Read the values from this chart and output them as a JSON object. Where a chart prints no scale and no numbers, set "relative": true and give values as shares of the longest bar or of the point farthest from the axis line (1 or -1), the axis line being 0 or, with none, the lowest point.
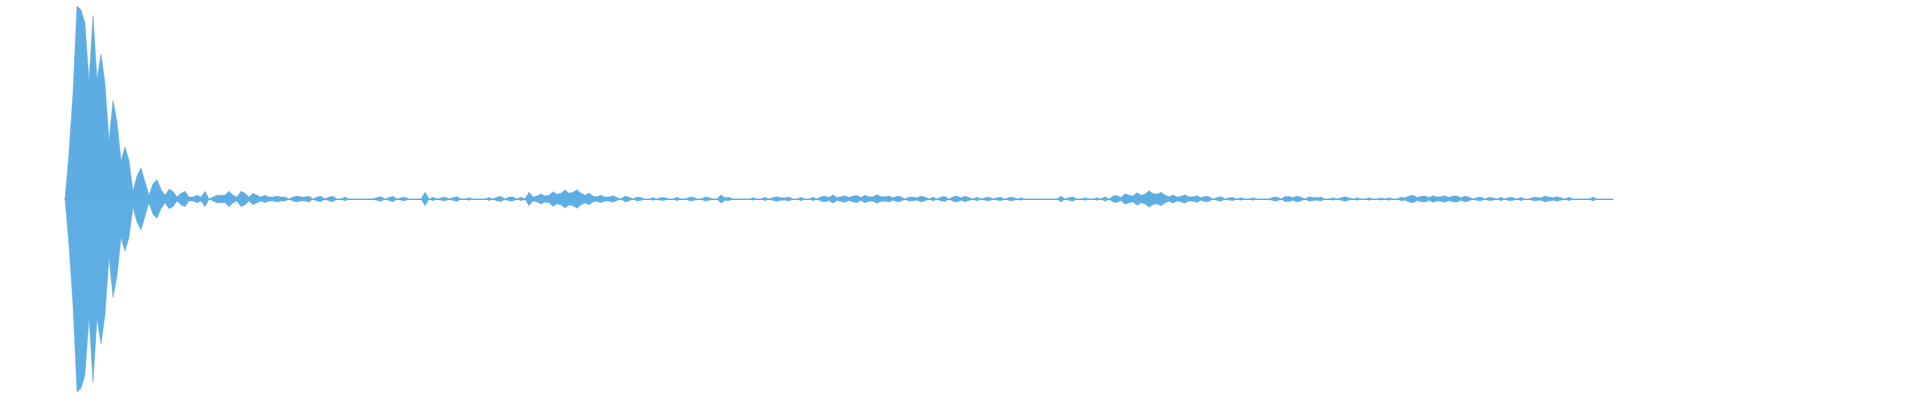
{
  "chart_data": {
    "type": "area",
    "relative": true,
    "categories": [
      null,
      null,
      null,
      null,
      null,
      null,
      null,
      null,
      null,
      null,
      null,
      null,
      null,
      null,
      null,
      null,
      null,
      null,
      null,
      null,
      null,
      null,
      null,
      null,
      null,
      null,
      null,
      null,
      null,
      null,
      null,
      null,
      null,
      null,
      null,
      null,
      null,
      null,
      null,
      null,
      null,
      null,
      null,
      null,
      null,
      null,
      null,
      null,
      null,
      null,
      null,
      null,
      null,
      null,
      null,
      null,
      null,
      null,
      null,
      null,
      null,
      null,
      null,
      null,
      null,
      null,
      null,
      null,
      null,
      null,
      null,
      null,
      null,
      null,
      null,
      null,
      null,
      null,
      null,
      null,
      null,
      null,
      null,
      null,
      null,
      null,
      null,
      null,
      null,
      null,
      null,
      null,
      null,
      null,
      null,
      null,
      null,
      null,
      null,
      null,
      null,
      null,
      null,
      null,
      null,
      null,
      null,
      null,
      null,
      null,
      null,
      null,
      null,
      null,
      null,
      null,
      null,
      null,
      null,
      null,
      null,
      null,
      null,
      null,
      null,
      null,
      null,
      null,
      null,
      null,
      null,
      null,
      null,
      null,
      null,
      null,
      null,
      null,
      null,
      null,
      null,
      null,
      null,
      null,
      null,
      null,
      null,
      null,
      null,
      null,
      null,
      null,
      null,
      null,
      null,
      null,
      null,
      null,
      null,
      null,
      null,
      null,
      null,
      null,
      null,
      null,
      null,
      null,
      null,
      null,
      null,
      null,
      null,
      null,
      null,
      null,
      null,
      null,
      null,
      null,
      null,
      null,
      null,
      null,
      null,
      null,
      null,
      null,
      null,
      null,
      null,
      null,
      null,
      null,
      null,
      null,
      null,
      null,
      null,
      null,
      null,
      null,
      null,
      null,
      null,
      null,
      null,
      null,
      null,
      null,
      null,
      null,
      null,
      null,
      null,
      null,
      null,
      null,
      null,
      null,
      null,
      null,
      null,
      null,
      null,
      null,
      null,
      null,
      null,
      null,
      null,
      null,
      null,
      null,
      null,
      null,
      null,
      null,
      null,
      null,
      null,
      null,
      null,
      null,
      null,
      null,
      null,
      null,
      null,
      null,
      null,
      null,
      null,
      null,
      null,
      null,
      null,
      null,
      null,
      null,
      null,
      null,
      null,
      null,
      null,
      null,
      null,
      null,
      null,
      null,
      null,
      null,
      null,
      null,
      null,
      null,
      null,
      null,
      null,
      null,
      null,
      null,
      null,
      null,
      null,
      null,
      null,
      null,
      null,
      null,
      null,
      null,
      null,
      null,
      null,
      null,
      null,
      null,
      null,
      null,
      null,
      null,
      null,
      null,
      null,
      null,
      null,
      null,
      null,
      null,
      null,
      null,
      null,
      null,
      null,
      null,
      null,
      null,
      null,
      null,
      null,
      null,
      null,
      null,
      null,
      null,
      null,
      null,
      null,
      null,
      null,
      null,
      null,
      null,
      null,
      null,
      null,
      null,
      null,
      null,
      null,
      null,
      null,
      null,
      null,
      null,
      null,
      null,
      null,
      null,
      null,
      null,
      null,
      null,
      null,
      null,
      null,
      null,
      null,
      null,
      null,
      null,
      null,
      null,
      null,
      null,
      null,
      null,
      null,
      null,
      null,
      null,
      null,
      null,
      null,
      null,
      null,
      null,
      null,
      null,
      null,
      null,
      null,
      null,
      null,
      null,
      null,
      null
    ],
    "series": [
      {
        "color": "#5dade2",
        "values": [
          0,
          0.24,
          0.55,
          1,
          0.98,
          0.91,
          0.61,
          0.95,
          0.62,
          0.75,
          0.6,
          0.3,
          0.51,
          0.4,
          0.2,
          0.27,
          0.2,
          0.04,
          0.12,
          0.16,
          0.09,
          0.02,
          0.08,
          0.1,
          0.05,
          0.02,
          0.05,
          0.04,
          0.01,
          0.03,
          0.04,
          0.01,
          0.01,
          0.02,
          0.01,
          0.04,
          0,
          0.01,
          0.02,
          0.02,
          0.02,
          0.04,
          0.02,
          0.01,
          0.04,
          0.03,
          0.01,
          0.03,
          0.02,
          0.01,
          0.02,
          0.01,
          0.01,
          0.015,
          0.01,
          0.01,
          0,
          0.01,
          0.015,
          0.01,
          0.01,
          0.015,
          0,
          0.01,
          0.014,
          0,
          0.01,
          0.014,
          0,
          0,
          0.01,
          0,
          0,
          0,
          0,
          0,
          0,
          0,
          0.008,
          0.012,
          0,
          0.008,
          0.014,
          0,
          0.006,
          0.009,
          0,
          0,
          0,
          0,
          0.035,
          0,
          0.009,
          0,
          0.006,
          0.01,
          0,
          0.008,
          0.012,
          0,
          0,
          0.007,
          0,
          0,
          0,
          0,
          0.008,
          0,
          0.01,
          0.013,
          0,
          0.01,
          0.01,
          0,
          0.009,
          0,
          0.035,
          0.01,
          0.015,
          0.026,
          0.015,
          0.02,
          0.038,
          0.025,
          0.03,
          0.047,
          0.03,
          0.035,
          0.048,
          0.03,
          0.02,
          0.03,
          0.015,
          0.012,
          0.02,
          0.01,
          0.01,
          0.017,
          0.008,
          0,
          0.015,
          0.01,
          0,
          0.01,
          0.008,
          0,
          0,
          0.007,
          0,
          0.008,
          0.006,
          0,
          0,
          0.009,
          0,
          0,
          0.008,
          0.01,
          0,
          0,
          0.01,
          0.008,
          0,
          0,
          0.022,
          0.006,
          0.009,
          0,
          0,
          0,
          0,
          0,
          0.007,
          0,
          0,
          0.009,
          0,
          0.008,
          0.012,
          0.006,
          0.006,
          0.01,
          0,
          0,
          0.009,
          0,
          0,
          0.009,
          0,
          0.012,
          0.014,
          0.008,
          0.022,
          0.008,
          0.012,
          0.017,
          0.008,
          0.015,
          0.018,
          0.008,
          0.019,
          0.012,
          0.012,
          0.022,
          0.012,
          0.012,
          0.015,
          0.006,
          0.014,
          0.012,
          0,
          0.011,
          0.009,
          0.006,
          0.015,
          0.01,
          0,
          0.01,
          0,
          0.01,
          0.013,
          0,
          0.012,
          0.015,
          0.006,
          0.014,
          0.008,
          0,
          0.01,
          0,
          0.006,
          0.01,
          0,
          0.006,
          0.009,
          0,
          0.008,
          0.009,
          0,
          0.007,
          0,
          0,
          0,
          0,
          0,
          0,
          0,
          0,
          0,
          0.015,
          0,
          0.008,
          0.01,
          0,
          0,
          0.007,
          0,
          0,
          0.007,
          0,
          0.012,
          0,
          0.015,
          0.018,
          0.008,
          0.027,
          0.02,
          0.015,
          0.033,
          0.02,
          0.025,
          0.043,
          0.028,
          0.025,
          0.035,
          0.02,
          0.012,
          0.021,
          0.01,
          0.014,
          0.022,
          0.01,
          0.012,
          0.017,
          0.006,
          0.014,
          0.012,
          0,
          0.008,
          0.012,
          0,
          0.006,
          0.008,
          0,
          0.007,
          0,
          0,
          0.007,
          0,
          0,
          0,
          0,
          0.009,
          0.011,
          0,
          0.013,
          0.013,
          0.006,
          0.015,
          0.01,
          0,
          0.012,
          0.008,
          0.006,
          0.01,
          0,
          0,
          0.007,
          0,
          0.006,
          0.012,
          0.006,
          0,
          0.007,
          0,
          0,
          0.007,
          0,
          0,
          0.006,
          0,
          0.007,
          0,
          0,
          0.009,
          0.006,
          0.015,
          0.02,
          0.008,
          0.014,
          0.015,
          0.008,
          0.017,
          0.01,
          0.012,
          0.017,
          0.008,
          0.015,
          0.015,
          0.006,
          0.015,
          0.01,
          0,
          0.008,
          0.009,
          0,
          0.009,
          0.006,
          0,
          0.009,
          0,
          0.009,
          0.007,
          0,
          0.009,
          0,
          0,
          0.009,
          0.008,
          0.006,
          0.015,
          0.01,
          0.006,
          0.012,
          0.006,
          0,
          0.009,
          0,
          0,
          0,
          0,
          0,
          0.01,
          0,
          0,
          0,
          0,
          0
        ]
      },
      {
        "color": "#5eaee3",
        "values": [
          0,
          -0.24,
          -0.55,
          -1,
          -0.98,
          -0.91,
          -0.61,
          -0.95,
          -0.62,
          -0.75,
          -0.6,
          -0.3,
          -0.51,
          -0.4,
          -0.2,
          -0.27,
          -0.2,
          -0.04,
          -0.12,
          -0.16,
          -0.09,
          -0.02,
          -0.08,
          -0.1,
          -0.05,
          -0.02,
          -0.05,
          -0.04,
          -0.01,
          -0.03,
          -0.04,
          -0.01,
          -0.01,
          -0.02,
          -0.01,
          -0.04,
          0,
          -0.01,
          -0.02,
          -0.02,
          -0.02,
          -0.04,
          -0.02,
          -0.01,
          -0.04,
          -0.03,
          -0.01,
          -0.03,
          -0.02,
          -0.01,
          -0.02,
          -0.01,
          -0.01,
          -0.015,
          -0.01,
          -0.01,
          0,
          -0.01,
          -0.015,
          -0.01,
          -0.01,
          -0.015,
          0,
          -0.01,
          -0.014,
          0,
          -0.01,
          -0.014,
          0,
          0,
          -0.01,
          0,
          0,
          0,
          0,
          0,
          0,
          0,
          -0.008,
          -0.012,
          0,
          -0.008,
          -0.014,
          0,
          -0.006,
          -0.009,
          0,
          0,
          0,
          0,
          -0.035,
          0,
          -0.009,
          0,
          -0.006,
          -0.01,
          0,
          -0.008,
          -0.012,
          0,
          0,
          -0.007,
          0,
          0,
          0,
          0,
          -0.008,
          0,
          -0.01,
          -0.013,
          0,
          -0.01,
          -0.01,
          0,
          -0.009,
          0,
          -0.035,
          -0.01,
          -0.015,
          -0.026,
          -0.015,
          -0.02,
          -0.038,
          -0.025,
          -0.03,
          -0.047,
          -0.03,
          -0.035,
          -0.048,
          -0.03,
          -0.02,
          -0.03,
          -0.015,
          -0.012,
          -0.02,
          -0.01,
          -0.01,
          -0.017,
          -0.008,
          0,
          -0.015,
          -0.01,
          0,
          -0.01,
          -0.008,
          0,
          0,
          -0.007,
          0,
          -0.008,
          -0.006,
          0,
          0,
          -0.009,
          0,
          0,
          -0.008,
          -0.01,
          0,
          0,
          -0.01,
          -0.008,
          0,
          0,
          -0.022,
          -0.006,
          -0.009,
          0,
          0,
          0,
          0,
          0,
          -0.007,
          0,
          0,
          -0.009,
          0,
          -0.008,
          -0.012,
          -0.006,
          -0.006,
          -0.01,
          0,
          0,
          -0.009,
          0,
          0,
          -0.009,
          0,
          -0.012,
          -0.014,
          -0.008,
          -0.022,
          -0.008,
          -0.012,
          -0.017,
          -0.008,
          -0.015,
          -0.018,
          -0.008,
          -0.019,
          -0.012,
          -0.012,
          -0.022,
          -0.012,
          -0.012,
          -0.015,
          -0.006,
          -0.014,
          -0.012,
          0,
          -0.011,
          -0.009,
          -0.006,
          -0.015,
          -0.01,
          0,
          -0.01,
          0,
          -0.01,
          -0.013,
          0,
          -0.012,
          -0.015,
          -0.006,
          -0.014,
          -0.008,
          0,
          -0.01,
          0,
          -0.006,
          -0.01,
          0,
          -0.006,
          -0.009,
          0,
          -0.008,
          -0.009,
          0,
          -0.007,
          0,
          0,
          0,
          0,
          0,
          0,
          0,
          0,
          0,
          -0.015,
          0,
          -0.008,
          -0.01,
          0,
          0,
          -0.007,
          0,
          0,
          -0.007,
          0,
          -0.012,
          0,
          -0.015,
          -0.018,
          -0.008,
          -0.027,
          -0.02,
          -0.015,
          -0.033,
          -0.02,
          -0.025,
          -0.043,
          -0.028,
          -0.025,
          -0.035,
          -0.02,
          -0.012,
          -0.021,
          -0.01,
          -0.014,
          -0.022,
          -0.01,
          -0.012,
          -0.017,
          -0.006,
          -0.014,
          -0.012,
          0,
          -0.008,
          -0.012,
          0,
          -0.006,
          -0.008,
          0,
          -0.007,
          0,
          0,
          -0.007,
          0,
          0,
          0,
          0,
          -0.009,
          -0.011,
          0,
          -0.013,
          -0.013,
          -0.006,
          -0.015,
          -0.01,
          0,
          -0.012,
          -0.008,
          -0.006,
          -0.01,
          0,
          0,
          -0.007,
          0,
          -0.006,
          -0.012,
          -0.006,
          0,
          -0.007,
          0,
          0,
          -0.007,
          0,
          0,
          -0.006,
          0,
          -0.007,
          0,
          0,
          -0.009,
          -0.006,
          -0.015,
          -0.02,
          -0.008,
          -0.014,
          -0.015,
          -0.008,
          -0.017,
          -0.01,
          -0.012,
          -0.017,
          -0.008,
          -0.015,
          -0.015,
          -0.006,
          -0.015,
          -0.01,
          0,
          -0.008,
          -0.009,
          0,
          -0.009,
          -0.006,
          0,
          -0.009,
          0,
          -0.009,
          -0.007,
          0,
          -0.009,
          0,
          0,
          -0.009,
          -0.008,
          -0.006,
          -0.015,
          -0.01,
          -0.006,
          -0.012,
          -0.006,
          0,
          -0.009,
          0,
          0,
          0,
          0,
          0,
          -0.01,
          0,
          0,
          0,
          0,
          0
        ]
      }
    ]
  }
}
